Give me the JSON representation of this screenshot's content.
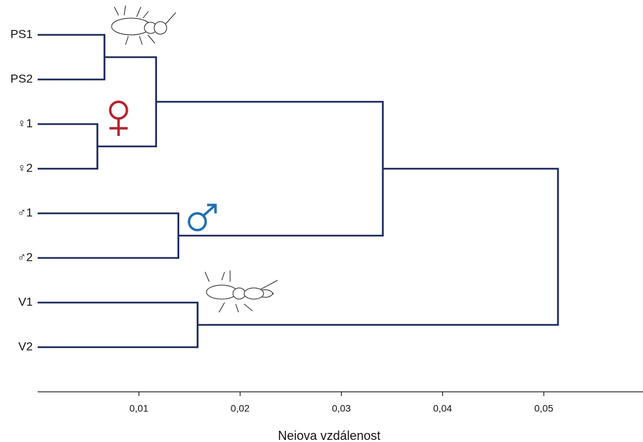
{
  "chart_data": {
    "type": "dendrogram",
    "xlabel": "Neiova vzdálenost",
    "xlim": [
      0,
      0.0598
    ],
    "xticks": [
      {
        "value": 0.01,
        "label": "0,01"
      },
      {
        "value": 0.02,
        "label": "0,02"
      },
      {
        "value": 0.03,
        "label": "0,03"
      },
      {
        "value": 0.04,
        "label": "0,04"
      },
      {
        "value": 0.05,
        "label": "0,05"
      }
    ],
    "color": "#1d2a5c",
    "tree": {
      "height": 0.0514,
      "children": [
        {
          "height": 0.0341,
          "children": [
            {
              "height": 0.0117,
              "children": [
                {
                  "height": 0.0066,
                  "children": [
                    "PS1",
                    "PS2"
                  ]
                },
                {
                  "height": 0.0059,
                  "children": [
                    "♀1",
                    "♀2"
                  ]
                }
              ]
            },
            {
              "height": 0.0139,
              "children": [
                "♂1",
                "♂2"
              ]
            }
          ]
        },
        {
          "height": 0.0158,
          "children": [
            "V1",
            "V2"
          ]
        }
      ]
    }
  }
}
